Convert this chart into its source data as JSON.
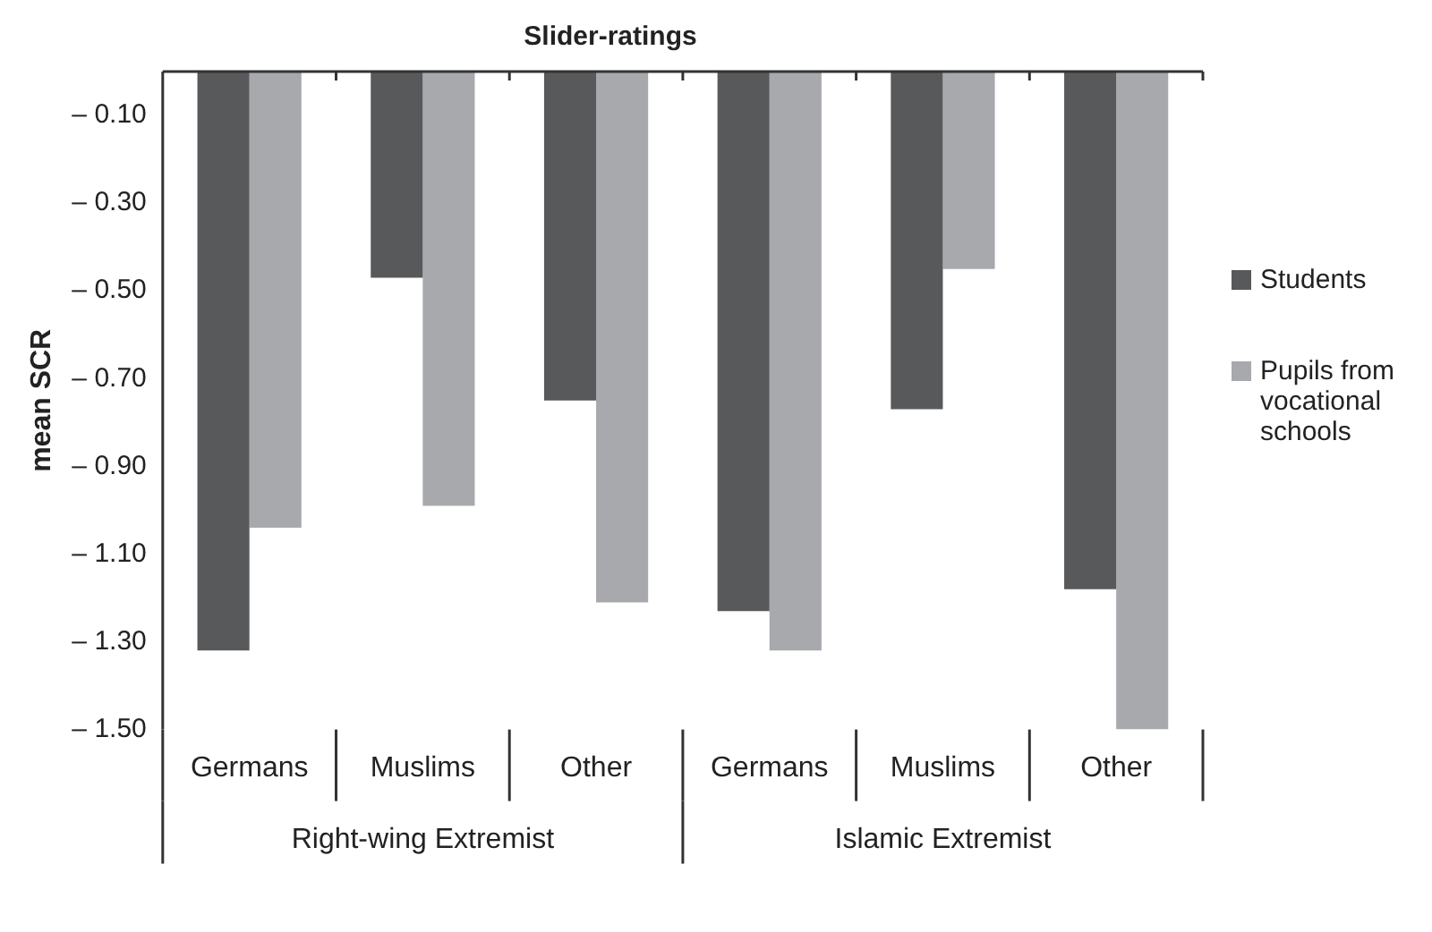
{
  "chart_data": {
    "type": "bar",
    "title": "Slider-ratings",
    "ylabel": "mean SCR",
    "categories": [
      "Germans",
      "Muslims",
      "Other",
      "Germans",
      "Muslims",
      "Other"
    ],
    "series": [
      {
        "name": "Students",
        "color": "#58595b",
        "values": [
          -1.32,
          -0.47,
          -0.75,
          -1.23,
          -0.77,
          -1.18
        ]
      },
      {
        "name": "Pupils from vocational schools",
        "color": "#a7a9ac",
        "values": [
          -1.04,
          -0.99,
          -1.21,
          -1.32,
          -0.45,
          -1.5
        ]
      }
    ],
    "ylim": [
      -1.5,
      0
    ],
    "yticks": [
      {
        "value": -0.1,
        "label": "– 0.10"
      },
      {
        "value": -0.3,
        "label": "– 0.30"
      },
      {
        "value": -0.5,
        "label": "– 0.50"
      },
      {
        "value": -0.7,
        "label": "– 0.70"
      },
      {
        "value": -0.9,
        "label": "– 0.90"
      },
      {
        "value": -1.1,
        "label": "– 1.10"
      },
      {
        "value": -1.3,
        "label": "– 1.30"
      },
      {
        "value": -1.5,
        "label": "– 1.50"
      }
    ],
    "annotations": [
      "Right-wing Extremist",
      "Islamic Extremist"
    ],
    "grid": false,
    "legend": "right"
  }
}
